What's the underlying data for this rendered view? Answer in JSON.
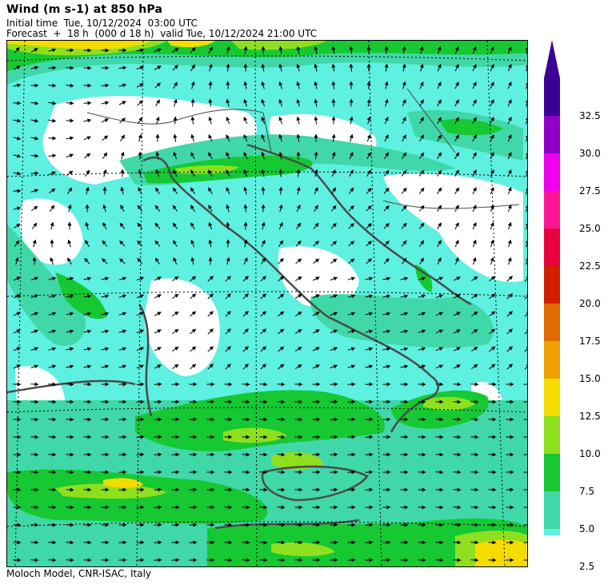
{
  "header": {
    "title": "Wind (m s-1) at 850 hPa",
    "initial": "Initial time  Tue, 10/12/2024  03:00 UTC",
    "forecast": "Forecast  +  18 h  (000 d 18 h)  valid Tue, 10/12/2024 21:00 UTC"
  },
  "footer": {
    "credit": "Moloch Model, CNR-ISAC, Italy"
  },
  "colorbar": {
    "levels": [
      {
        "label": "2.5",
        "color": "#5ef0e0"
      },
      {
        "label": "5.0",
        "color": "#40d8a8"
      },
      {
        "label": "7.5",
        "color": "#16c832"
      },
      {
        "label": "10.0",
        "color": "#8ee01e"
      },
      {
        "label": "12.5",
        "color": "#f5dc00"
      },
      {
        "label": "15.0",
        "color": "#eea000"
      },
      {
        "label": "17.5",
        "color": "#e06a00"
      },
      {
        "label": "20.0",
        "color": "#d21e00"
      },
      {
        "label": "22.5",
        "color": "#e8003c"
      },
      {
        "label": "25.0",
        "color": "#ff1493"
      },
      {
        "label": "27.5",
        "color": "#ee00ee"
      },
      {
        "label": "30.0",
        "color": "#8e00c8"
      },
      {
        "label": "32.5",
        "color": "#3c0096"
      }
    ],
    "arrow_color": "#3c0096"
  }
}
